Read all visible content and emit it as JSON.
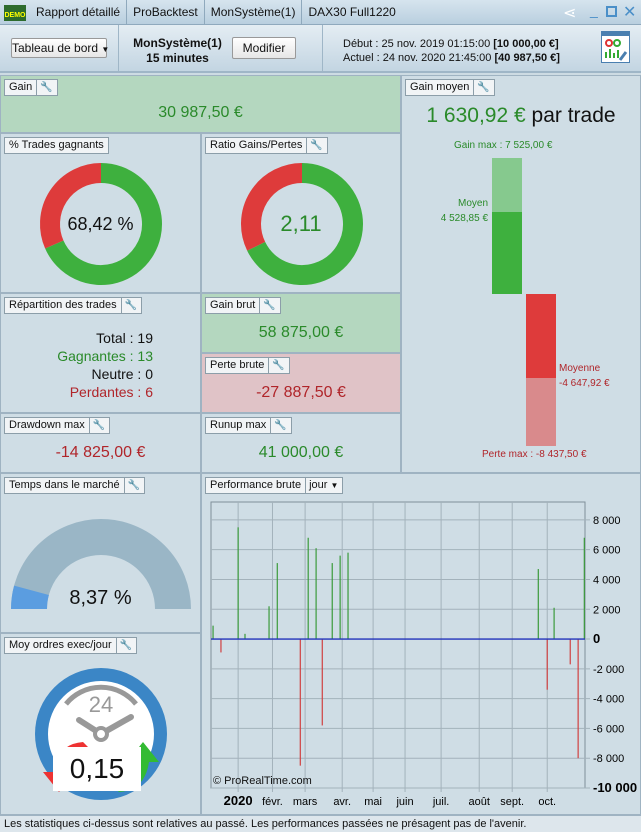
{
  "topbar": {
    "logo": "DEMO",
    "tabs": [
      "Rapport détaillé",
      "ProBacktest",
      "MonSystème(1)",
      "DAX30 Full1220"
    ]
  },
  "header": {
    "view_select": "Tableau de bord",
    "system_name": "MonSystème(1)",
    "timeframe": "15 minutes",
    "modify_label": "Modifier",
    "start_label": "Début :",
    "start_date": "25 nov. 2019 01:15:00",
    "start_capital": "[10 000,00 €]",
    "current_label": "Actuel :",
    "current_date": "24 nov. 2020 21:45:00",
    "current_capital": "[40 987,50 €]"
  },
  "gain": {
    "title": "Gain",
    "value": "30 987,50 €"
  },
  "win_trades": {
    "title": "% Trades gagnants",
    "value": "68,42 %",
    "fraction": 0.6842
  },
  "ratio": {
    "title": "Ratio Gains/Pertes",
    "value": "2,11",
    "fraction": 0.678
  },
  "avg_gain": {
    "title": "Gain moyen",
    "value": "1 630,92 €",
    "suffix": "par trade",
    "max_gain_label": "Gain max : 7 525,00 €",
    "avg_label": "Moyen",
    "avg_value": "4 528,85 €",
    "avg_loss_label": "Moyenne",
    "avg_loss_value": "-4 647,92 €",
    "max_loss_label": "Perte max : -8 437,50 €",
    "max_gain": 7525,
    "avg_win": 4528.85,
    "avg_loss": 4647.92,
    "max_loss": 8437.5,
    "colors": {
      "green": "#3eb03e",
      "red": "#de3b3b"
    }
  },
  "distribution": {
    "title": "Répartition des trades",
    "total": "Total : 19",
    "winners": "Gagnantes : 13",
    "neutral": "Neutre : 0",
    "losers": "Perdantes : 6"
  },
  "gross_gain": {
    "title": "Gain brut",
    "value": "58 875,00 €"
  },
  "gross_loss": {
    "title": "Perte brute",
    "value": "-27 887,50 €"
  },
  "drawdown": {
    "title": "Drawdown max",
    "value": "-14 825,00 €"
  },
  "runup": {
    "title": "Runup max",
    "value": "41 000,00 €"
  },
  "time_in_market": {
    "title": "Temps dans le marché",
    "value": "8,37 %",
    "fraction": 0.0837
  },
  "orders": {
    "title": "Moy ordres exec/jour",
    "value": "0,15",
    "clock_label": "24"
  },
  "footer": "Les statistiques ci-dessus sont relatives au passé. Les performances passées ne présagent pas de l'avenir.",
  "chart_data": {
    "type": "bar",
    "title": "Performance brute",
    "period_select": "jour",
    "watermark": "© ProRealTime.com",
    "xlabel": "",
    "ylabel": "",
    "ylim": [
      -10000,
      9200
    ],
    "xlim": [
      -0.79,
      10.1
    ],
    "grid": true,
    "x_unit": "months since Jan 2020",
    "x_ticks": [
      {
        "v": 0,
        "label": "2020"
      },
      {
        "v": 1,
        "label": "févr."
      },
      {
        "v": 1.95,
        "label": "mars"
      },
      {
        "v": 3.03,
        "label": "avr."
      },
      {
        "v": 3.93,
        "label": "mai"
      },
      {
        "v": 4.86,
        "label": "juin"
      },
      {
        "v": 5.91,
        "label": "juil."
      },
      {
        "v": 7.02,
        "label": "août"
      },
      {
        "v": 7.98,
        "label": "sept."
      },
      {
        "v": 9,
        "label": "oct."
      }
    ],
    "y_ticks": [
      {
        "v": 8000,
        "label": "8 000"
      },
      {
        "v": 6000,
        "label": "6 000"
      },
      {
        "v": 4000,
        "label": "4 000"
      },
      {
        "v": 2000,
        "label": "2 000"
      },
      {
        "v": 0,
        "label": "0"
      },
      {
        "v": -2000,
        "label": "-2 000"
      },
      {
        "v": -4000,
        "label": "-4 000"
      },
      {
        "v": -6000,
        "label": "-6 000"
      },
      {
        "v": -8000,
        "label": "-8 000"
      },
      {
        "v": -10000,
        "label": "-10 000"
      }
    ],
    "x": [
      -0.73,
      -0.5,
      0,
      0.2,
      0.9,
      1.14,
      1.81,
      2.04,
      2.27,
      2.45,
      2.74,
      2.97,
      3.2,
      8.74,
      9.0,
      9.2,
      9.67,
      9.9,
      10.08
    ],
    "values": [
      900,
      -900,
      7500,
      350,
      2200,
      5100,
      -8500,
      6800,
      6100,
      -5800,
      5100,
      5600,
      5800,
      4700,
      -3400,
      2100,
      -1700,
      -8000,
      6800
    ]
  }
}
